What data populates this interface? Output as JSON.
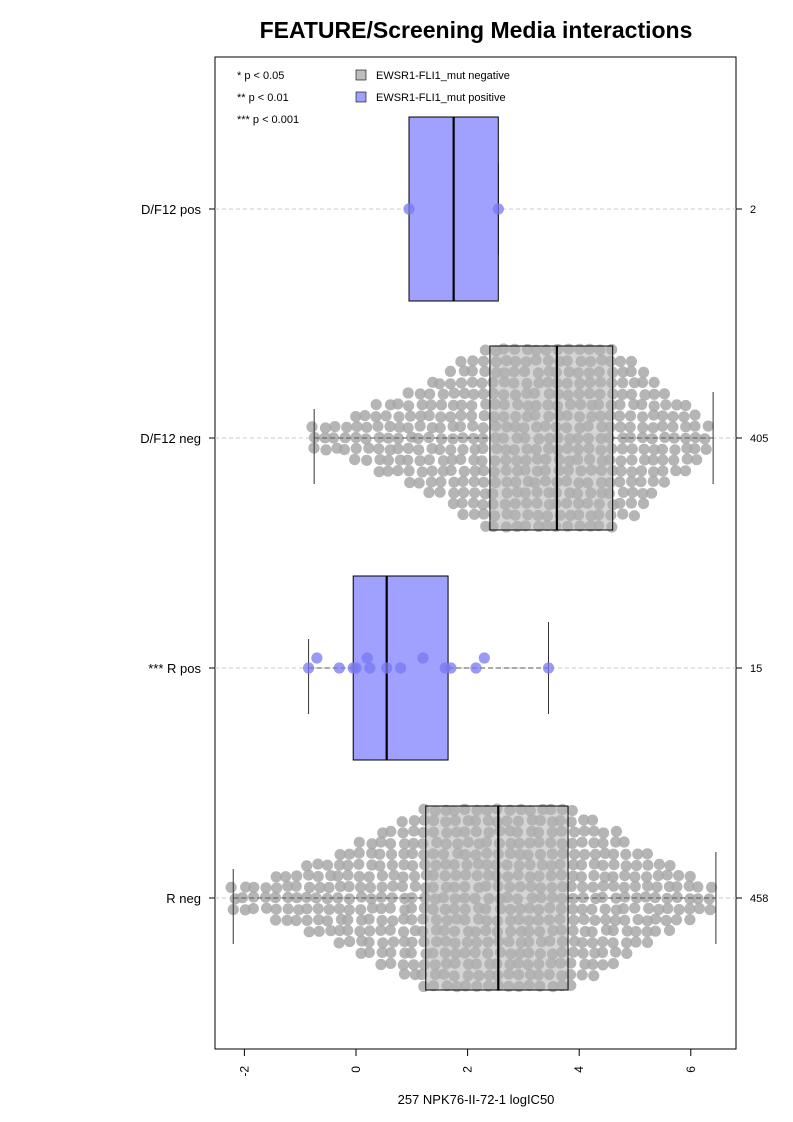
{
  "chart_data": {
    "type": "box",
    "title": "FEATURE/Screening Media interactions",
    "xlabel": "257 NPK76-II-72-1 logIC50",
    "ylabel": "",
    "xlim": [
      -2.5,
      6.8
    ],
    "x_ticks": [
      "-2",
      "0",
      "2",
      "4",
      "6"
    ],
    "x_tick_values": [
      -2,
      0,
      2,
      4,
      6
    ],
    "grid": "dashed horizontal guide line through each group",
    "significance_legend": [
      "* p < 0.05",
      "** p < 0.01",
      "*** p < 0.001"
    ],
    "legend": {
      "placement": "top-left",
      "entries": [
        {
          "label": "EWSR1-FLI1_mut negative",
          "color": "#bebebe"
        },
        {
          "label": "EWSR1-FLI1_mut positive",
          "color": "#a0a0ff"
        }
      ]
    },
    "groups": [
      {
        "label": "D/F12 pos",
        "n": "2",
        "status": "positive",
        "whisker_low": 0.95,
        "q1": 0.95,
        "median": 1.75,
        "q3": 2.55,
        "whisker_high": 2.55,
        "points": [
          0.95,
          2.55
        ]
      },
      {
        "label": "D/F12 neg",
        "n": "405",
        "status": "negative",
        "whisker_low": -0.75,
        "q1": 2.4,
        "median": 3.6,
        "q3": 4.6,
        "whisker_high": 6.4,
        "points": []
      },
      {
        "label": "*** R pos",
        "n": "15",
        "status": "positive",
        "whisker_low": -0.85,
        "q1": -0.05,
        "median": 0.55,
        "q3": 1.65,
        "whisker_high": 3.45,
        "points": [
          -0.85,
          -0.7,
          -0.3,
          -0.05,
          0.0,
          0.2,
          0.25,
          0.55,
          0.8,
          1.2,
          1.6,
          1.7,
          2.15,
          2.3,
          3.45
        ]
      },
      {
        "label": "R neg",
        "n": "458",
        "status": "negative",
        "whisker_low": -2.2,
        "q1": 1.25,
        "median": 2.55,
        "q3": 3.8,
        "whisker_high": 6.45,
        "points": []
      }
    ],
    "colors": {
      "negative_fill": "#b3b3b3",
      "negative_points": "#a8a8a8",
      "positive_fill": "#a0a0ff",
      "positive_points": "#7878f0",
      "guide": "#c8c8c8"
    }
  }
}
